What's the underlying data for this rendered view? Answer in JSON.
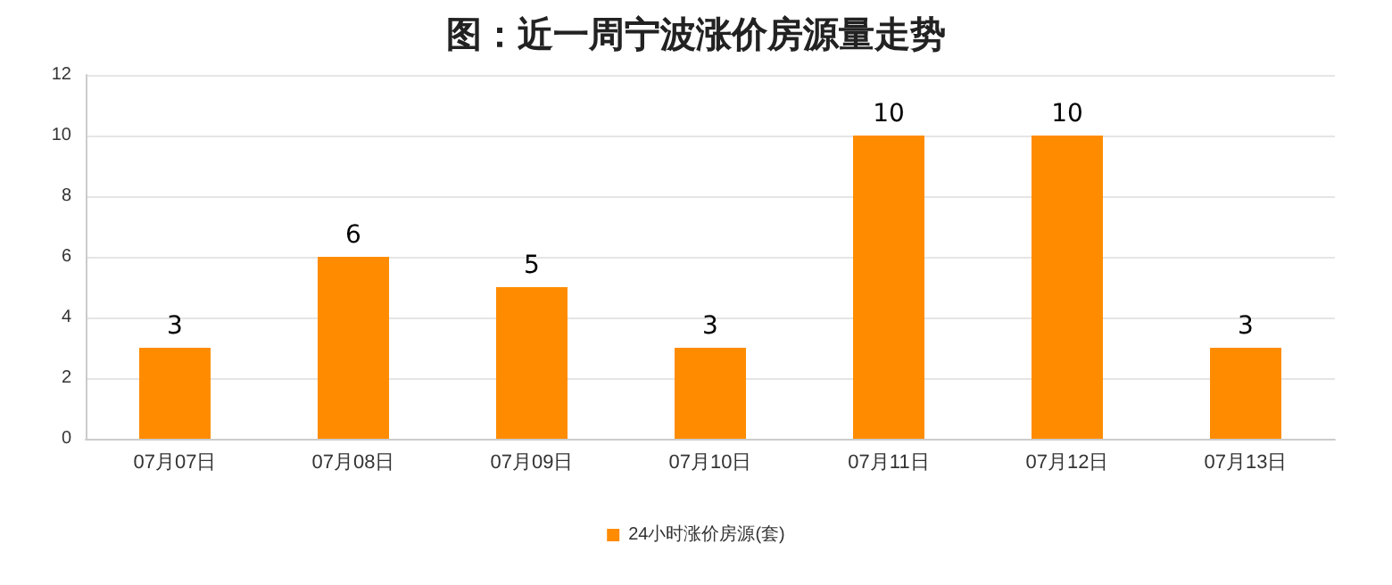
{
  "chart_data": {
    "type": "bar",
    "title": "图：近一周宁波涨价房源量走势",
    "categories": [
      "07月07日",
      "07月08日",
      "07月09日",
      "07月10日",
      "07月11日",
      "07月12日",
      "07月13日"
    ],
    "series": [
      {
        "name": "24小时涨价房源(套)",
        "color": "#ff8c00",
        "values": [
          3,
          6,
          5,
          3,
          10,
          10,
          3
        ]
      }
    ],
    "ylim": [
      0,
      12
    ],
    "yticks": [
      0,
      2,
      4,
      6,
      8,
      10,
      12
    ],
    "grid": "y",
    "legend": "bottom",
    "data_labels": true
  }
}
